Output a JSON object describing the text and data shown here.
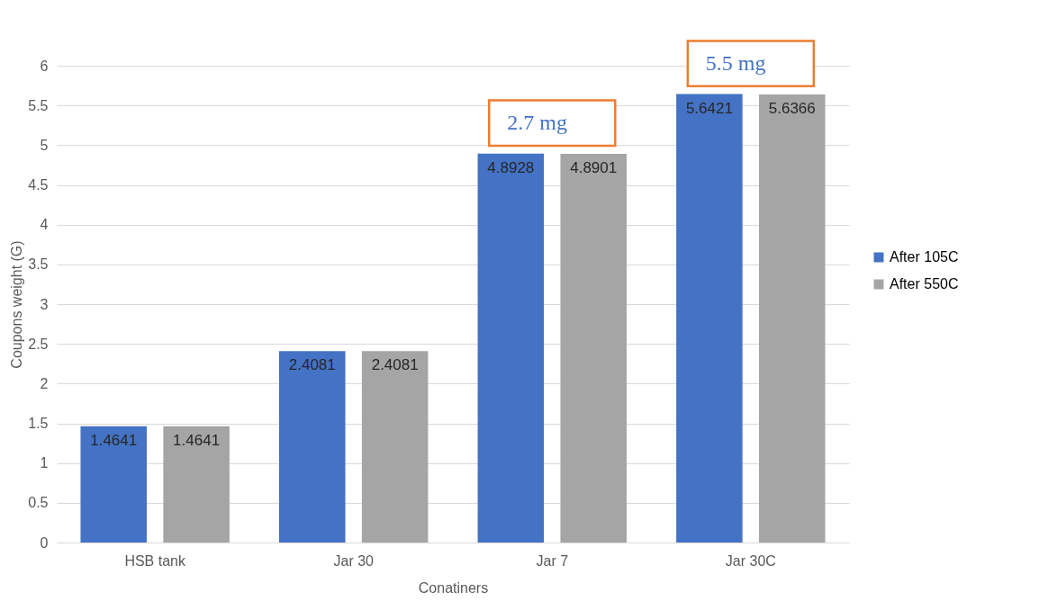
{
  "chart_data": {
    "type": "bar",
    "xlabel": "Conatiners",
    "ylabel": "Coupons weight (G)",
    "categories": [
      "HSB  tank",
      "Jar 30",
      "Jar 7",
      "Jar 30C"
    ],
    "series": [
      {
        "name": "After 105C",
        "color": "#4472c4",
        "values": [
          1.4641,
          2.4081,
          4.8928,
          5.6421
        ]
      },
      {
        "name": "After 550C",
        "color": "#a5a5a5",
        "values": [
          1.4641,
          2.4081,
          4.8901,
          5.6366
        ]
      }
    ],
    "ylim": [
      0,
      6
    ],
    "yticks": [
      0,
      0.5,
      1,
      1.5,
      2,
      2.5,
      3,
      3.5,
      4,
      4.5,
      5,
      5.5,
      6
    ],
    "grid": "y",
    "legend": "right",
    "data_labels": true,
    "annotations": [
      "2.7 mg",
      "5.5 mg"
    ]
  }
}
